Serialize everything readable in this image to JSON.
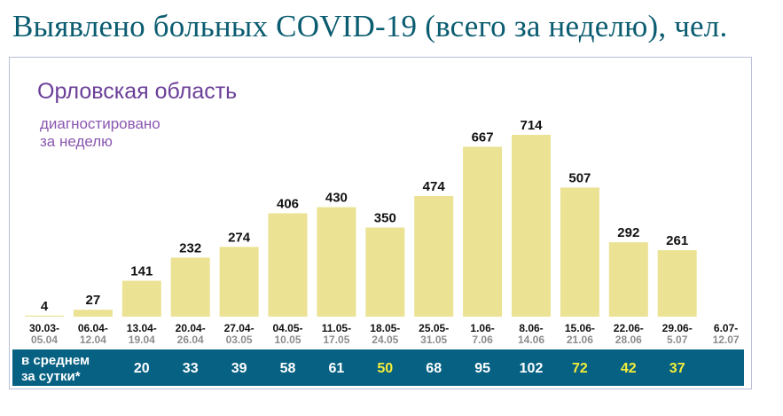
{
  "title": "Выявлено больных COVID-19 (всего за неделю), чел.",
  "region": "Орловская область",
  "subtitle_line1": "диагностировано",
  "subtitle_line2": "за неделю",
  "colors": {
    "title": "#0a5c70",
    "bar": "#ebe294",
    "band": "#076183",
    "average_text": "#ffffff",
    "average_highlight": "#f4ee3a",
    "region_text": "#6b3f98"
  },
  "chart_data": {
    "type": "bar",
    "title": "Орловская область",
    "ylabel": "диагностировано за неделю",
    "categories": [
      {
        "start": "30.03-",
        "end": "05.04"
      },
      {
        "start": "06.04-",
        "end": "12.04"
      },
      {
        "start": "13.04-",
        "end": "19.04"
      },
      {
        "start": "20.04-",
        "end": "26.04"
      },
      {
        "start": "27.04-",
        "end": "03.05"
      },
      {
        "start": "04.05-",
        "end": "10.05"
      },
      {
        "start": "11.05-",
        "end": "17.05"
      },
      {
        "start": "18.05-",
        "end": "24.05"
      },
      {
        "start": "25.05-",
        "end": "31.05"
      },
      {
        "start": "1.06-",
        "end": "7.06"
      },
      {
        "start": "8.06-",
        "end": "14.06"
      },
      {
        "start": "15.06-",
        "end": "21.06"
      },
      {
        "start": "22.06-",
        "end": "28.06"
      },
      {
        "start": "29.06-",
        "end": "5.07"
      },
      {
        "start": "6.07-",
        "end": "12.07"
      }
    ],
    "values": [
      4,
      27,
      141,
      232,
      274,
      406,
      430,
      350,
      474,
      667,
      714,
      507,
      292,
      261,
      null
    ],
    "ylim": [
      0,
      740
    ],
    "grid": false,
    "legend": "none",
    "daily_average": {
      "label_line1": "в  среднем",
      "label_line2": "за сутки*",
      "values": [
        null,
        null,
        20,
        33,
        39,
        58,
        61,
        50,
        68,
        95,
        102,
        72,
        42,
        37,
        null
      ],
      "highlighted": [
        false,
        false,
        false,
        false,
        false,
        false,
        false,
        true,
        false,
        false,
        false,
        true,
        true,
        true,
        false
      ]
    }
  }
}
